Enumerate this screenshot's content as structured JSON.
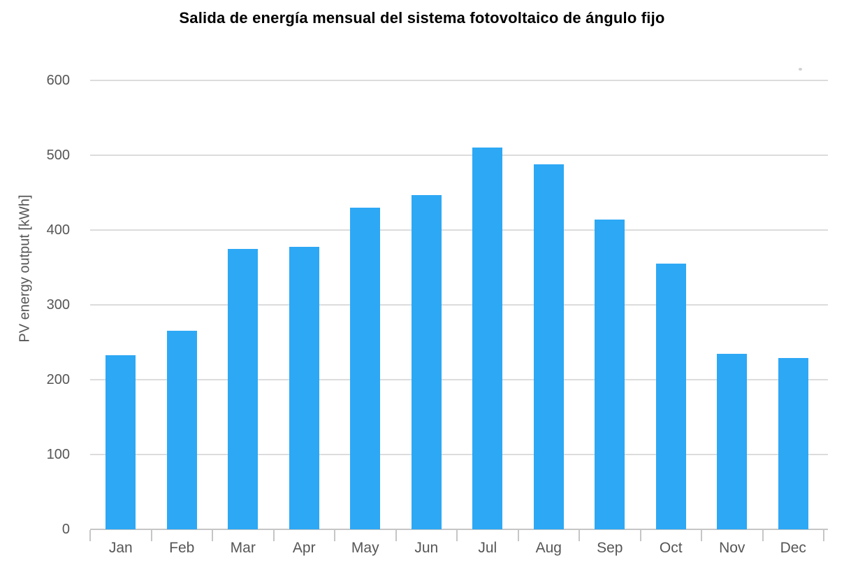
{
  "chart_data": {
    "type": "bar",
    "title": "Salida de energía mensual del sistema fotovoltaico de ángulo fijo",
    "xlabel": "",
    "ylabel": "PV energy output [kWh]",
    "categories": [
      "Jan",
      "Feb",
      "Mar",
      "Apr",
      "May",
      "Jun",
      "Jul",
      "Aug",
      "Sep",
      "Oct",
      "Nov",
      "Dec"
    ],
    "values": [
      233,
      265,
      375,
      378,
      430,
      447,
      510,
      488,
      414,
      355,
      235,
      229
    ],
    "ylim": [
      0,
      600
    ],
    "yticks": [
      0,
      100,
      200,
      300,
      400,
      500,
      600
    ],
    "grid": true,
    "legend": "none",
    "colors": {
      "bar": "#2DA8F5",
      "grid_line": "#DCDCDC",
      "axis_line": "#C6C6C6",
      "tick_text": "#565656",
      "title_text": "#000000"
    }
  }
}
